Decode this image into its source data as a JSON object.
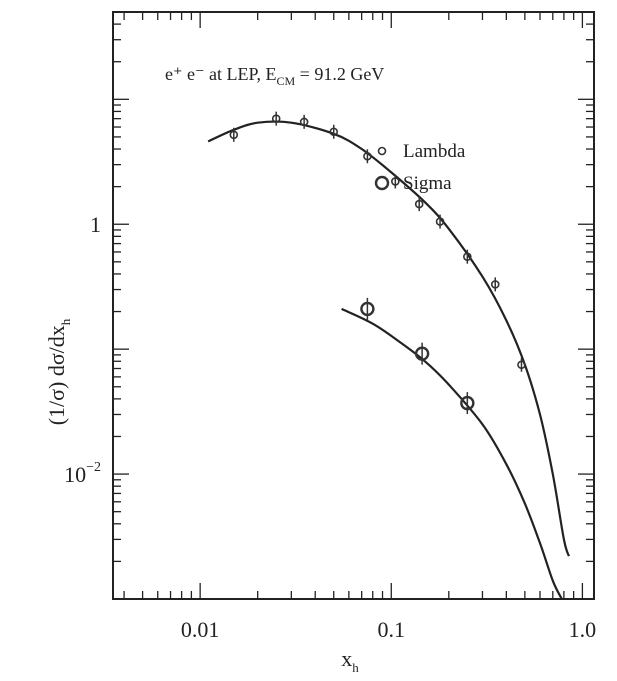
{
  "chart_data": {
    "type": "scatter",
    "title": "",
    "annotation": {
      "main": "e⁺ e⁻ at LEP, E",
      "sub": "CM",
      "tail": " = 91.2 GeV"
    },
    "xlabel": {
      "base": "x",
      "sub": "h"
    },
    "ylabel": {
      "text": "(1/σ) dσ/dx",
      "sub": "h"
    },
    "xscale": "log",
    "yscale": "log",
    "xlim": [
      0.0035,
      1.15
    ],
    "ylim": [
      0.001,
      50
    ],
    "x_tick_labels": [
      {
        "value": 0.01,
        "label": "0.01"
      },
      {
        "value": 0.1,
        "label": "0.1"
      },
      {
        "value": 1.0,
        "label": "1.0"
      }
    ],
    "y_tick_labels": [
      {
        "value": 1,
        "label": "1",
        "exp": ""
      },
      {
        "value": 0.01,
        "label": "10",
        "exp": "−2"
      }
    ],
    "grid": false,
    "legend_position": "top-right",
    "series": [
      {
        "name": "Lambda",
        "marker": "small-circle",
        "points": [
          {
            "x": 0.015,
            "y": 5.2
          },
          {
            "x": 0.025,
            "y": 7.0
          },
          {
            "x": 0.035,
            "y": 6.6
          },
          {
            "x": 0.05,
            "y": 5.5
          },
          {
            "x": 0.075,
            "y": 3.5
          },
          {
            "x": 0.105,
            "y": 2.2
          },
          {
            "x": 0.14,
            "y": 1.45
          },
          {
            "x": 0.18,
            "y": 1.05
          },
          {
            "x": 0.25,
            "y": 0.55
          },
          {
            "x": 0.35,
            "y": 0.33
          },
          {
            "x": 0.48,
            "y": 0.075
          }
        ],
        "fit": [
          {
            "x": 0.011,
            "y": 4.6
          },
          {
            "x": 0.015,
            "y": 5.7
          },
          {
            "x": 0.02,
            "y": 6.5
          },
          {
            "x": 0.03,
            "y": 6.5
          },
          {
            "x": 0.05,
            "y": 5.3
          },
          {
            "x": 0.07,
            "y": 4.0
          },
          {
            "x": 0.1,
            "y": 2.6
          },
          {
            "x": 0.15,
            "y": 1.5
          },
          {
            "x": 0.2,
            "y": 0.92
          },
          {
            "x": 0.3,
            "y": 0.38
          },
          {
            "x": 0.4,
            "y": 0.17
          },
          {
            "x": 0.5,
            "y": 0.075
          },
          {
            "x": 0.6,
            "y": 0.03
          },
          {
            "x": 0.7,
            "y": 0.01
          },
          {
            "x": 0.8,
            "y": 0.003
          },
          {
            "x": 0.85,
            "y": 0.0022
          }
        ]
      },
      {
        "name": "Sigma",
        "marker": "large-circle",
        "points": [
          {
            "x": 0.075,
            "y": 0.21
          },
          {
            "x": 0.145,
            "y": 0.092
          },
          {
            "x": 0.25,
            "y": 0.037
          }
        ],
        "fit": [
          {
            "x": 0.055,
            "y": 0.21
          },
          {
            "x": 0.08,
            "y": 0.16
          },
          {
            "x": 0.11,
            "y": 0.115
          },
          {
            "x": 0.15,
            "y": 0.08
          },
          {
            "x": 0.2,
            "y": 0.052
          },
          {
            "x": 0.3,
            "y": 0.025
          },
          {
            "x": 0.4,
            "y": 0.012
          },
          {
            "x": 0.5,
            "y": 0.0058
          },
          {
            "x": 0.6,
            "y": 0.0028
          },
          {
            "x": 0.7,
            "y": 0.0014
          },
          {
            "x": 0.78,
            "y": 0.001
          }
        ]
      }
    ]
  }
}
